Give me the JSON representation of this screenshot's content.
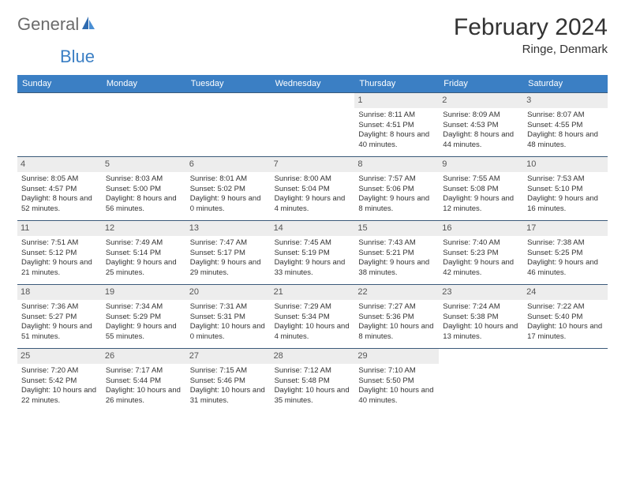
{
  "logo": {
    "text_general": "General",
    "text_blue": "Blue"
  },
  "header": {
    "month_title": "February 2024",
    "location": "Ringe, Denmark"
  },
  "colors": {
    "header_bg": "#3b7fc4",
    "header_text": "#ffffff",
    "row_border": "#3b5a7a",
    "day_num_bg": "#ededed",
    "day_num_text": "#555555",
    "body_text": "#333333",
    "logo_gray": "#6b6b6b",
    "logo_blue": "#3b7fc4"
  },
  "day_names": [
    "Sunday",
    "Monday",
    "Tuesday",
    "Wednesday",
    "Thursday",
    "Friday",
    "Saturday"
  ],
  "weeks": [
    [
      null,
      null,
      null,
      null,
      {
        "num": "1",
        "sunrise": "8:11 AM",
        "sunset": "4:51 PM",
        "daylight": "8 hours and 40 minutes."
      },
      {
        "num": "2",
        "sunrise": "8:09 AM",
        "sunset": "4:53 PM",
        "daylight": "8 hours and 44 minutes."
      },
      {
        "num": "3",
        "sunrise": "8:07 AM",
        "sunset": "4:55 PM",
        "daylight": "8 hours and 48 minutes."
      }
    ],
    [
      {
        "num": "4",
        "sunrise": "8:05 AM",
        "sunset": "4:57 PM",
        "daylight": "8 hours and 52 minutes."
      },
      {
        "num": "5",
        "sunrise": "8:03 AM",
        "sunset": "5:00 PM",
        "daylight": "8 hours and 56 minutes."
      },
      {
        "num": "6",
        "sunrise": "8:01 AM",
        "sunset": "5:02 PM",
        "daylight": "9 hours and 0 minutes."
      },
      {
        "num": "7",
        "sunrise": "8:00 AM",
        "sunset": "5:04 PM",
        "daylight": "9 hours and 4 minutes."
      },
      {
        "num": "8",
        "sunrise": "7:57 AM",
        "sunset": "5:06 PM",
        "daylight": "9 hours and 8 minutes."
      },
      {
        "num": "9",
        "sunrise": "7:55 AM",
        "sunset": "5:08 PM",
        "daylight": "9 hours and 12 minutes."
      },
      {
        "num": "10",
        "sunrise": "7:53 AM",
        "sunset": "5:10 PM",
        "daylight": "9 hours and 16 minutes."
      }
    ],
    [
      {
        "num": "11",
        "sunrise": "7:51 AM",
        "sunset": "5:12 PM",
        "daylight": "9 hours and 21 minutes."
      },
      {
        "num": "12",
        "sunrise": "7:49 AM",
        "sunset": "5:14 PM",
        "daylight": "9 hours and 25 minutes."
      },
      {
        "num": "13",
        "sunrise": "7:47 AM",
        "sunset": "5:17 PM",
        "daylight": "9 hours and 29 minutes."
      },
      {
        "num": "14",
        "sunrise": "7:45 AM",
        "sunset": "5:19 PM",
        "daylight": "9 hours and 33 minutes."
      },
      {
        "num": "15",
        "sunrise": "7:43 AM",
        "sunset": "5:21 PM",
        "daylight": "9 hours and 38 minutes."
      },
      {
        "num": "16",
        "sunrise": "7:40 AM",
        "sunset": "5:23 PM",
        "daylight": "9 hours and 42 minutes."
      },
      {
        "num": "17",
        "sunrise": "7:38 AM",
        "sunset": "5:25 PM",
        "daylight": "9 hours and 46 minutes."
      }
    ],
    [
      {
        "num": "18",
        "sunrise": "7:36 AM",
        "sunset": "5:27 PM",
        "daylight": "9 hours and 51 minutes."
      },
      {
        "num": "19",
        "sunrise": "7:34 AM",
        "sunset": "5:29 PM",
        "daylight": "9 hours and 55 minutes."
      },
      {
        "num": "20",
        "sunrise": "7:31 AM",
        "sunset": "5:31 PM",
        "daylight": "10 hours and 0 minutes."
      },
      {
        "num": "21",
        "sunrise": "7:29 AM",
        "sunset": "5:34 PM",
        "daylight": "10 hours and 4 minutes."
      },
      {
        "num": "22",
        "sunrise": "7:27 AM",
        "sunset": "5:36 PM",
        "daylight": "10 hours and 8 minutes."
      },
      {
        "num": "23",
        "sunrise": "7:24 AM",
        "sunset": "5:38 PM",
        "daylight": "10 hours and 13 minutes."
      },
      {
        "num": "24",
        "sunrise": "7:22 AM",
        "sunset": "5:40 PM",
        "daylight": "10 hours and 17 minutes."
      }
    ],
    [
      {
        "num": "25",
        "sunrise": "7:20 AM",
        "sunset": "5:42 PM",
        "daylight": "10 hours and 22 minutes."
      },
      {
        "num": "26",
        "sunrise": "7:17 AM",
        "sunset": "5:44 PM",
        "daylight": "10 hours and 26 minutes."
      },
      {
        "num": "27",
        "sunrise": "7:15 AM",
        "sunset": "5:46 PM",
        "daylight": "10 hours and 31 minutes."
      },
      {
        "num": "28",
        "sunrise": "7:12 AM",
        "sunset": "5:48 PM",
        "daylight": "10 hours and 35 minutes."
      },
      {
        "num": "29",
        "sunrise": "7:10 AM",
        "sunset": "5:50 PM",
        "daylight": "10 hours and 40 minutes."
      },
      null,
      null
    ]
  ],
  "labels": {
    "sunrise_prefix": "Sunrise: ",
    "sunset_prefix": "Sunset: ",
    "daylight_prefix": "Daylight: "
  }
}
